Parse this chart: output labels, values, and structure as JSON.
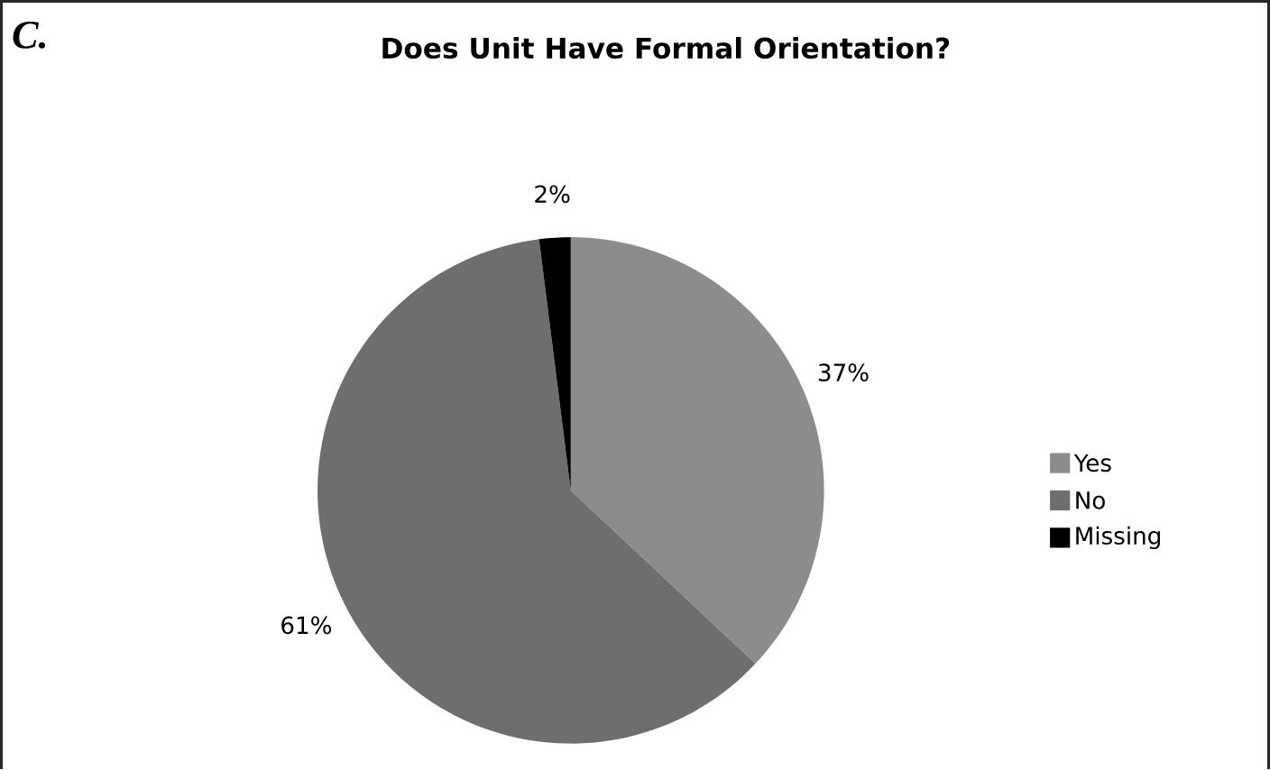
{
  "chart_data": {
    "type": "pie",
    "title": "Does Unit Have Formal Orientation?",
    "annotations": [
      "C."
    ],
    "categories": [
      "Yes",
      "No",
      "Missing"
    ],
    "values": [
      37,
      61,
      2
    ],
    "colors": [
      "#8c8c8c",
      "#6e6e6e",
      "#000000"
    ],
    "value_labels": [
      "37%",
      "61%",
      "2%"
    ],
    "legend": "right"
  }
}
